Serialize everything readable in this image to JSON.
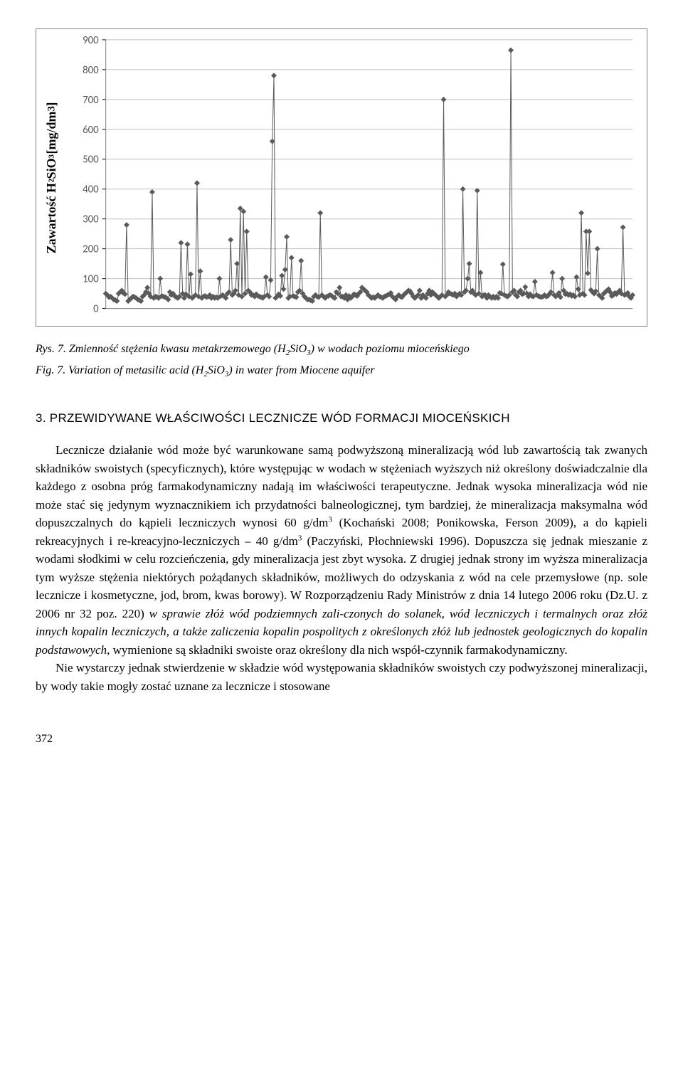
{
  "chart": {
    "type": "line-marker",
    "y_axis_label_html": "Zawartość H<sub>2</sub>SiO<sub>3</sub> [mg/dm<sup>3</sup>]",
    "ylim": [
      0,
      900
    ],
    "ytick_step": 100,
    "yticks": [
      0,
      100,
      200,
      300,
      400,
      500,
      600,
      700,
      800,
      900
    ],
    "x_count": 330,
    "background_color": "#ffffff",
    "border_color": "#808080",
    "grid_color": "#c0c0c0",
    "line_color": "#5a5a5a",
    "marker_color": "#5a5a5a",
    "marker_type": "diamond",
    "marker_size": 4,
    "line_width": 1,
    "tick_fontsize": 15,
    "axis_label_fontsize": 18,
    "values": [
      50,
      45,
      38,
      40,
      35,
      30,
      28,
      25,
      50,
      55,
      60,
      52,
      48,
      280,
      25,
      30,
      35,
      40,
      38,
      35,
      30,
      28,
      25,
      40,
      45,
      55,
      70,
      50,
      40,
      390,
      35,
      40,
      38,
      35,
      100,
      42,
      40,
      38,
      35,
      30,
      55,
      45,
      50,
      42,
      38,
      35,
      40,
      220,
      50,
      35,
      48,
      215,
      40,
      115,
      35,
      40,
      45,
      420,
      40,
      125,
      35,
      40,
      42,
      38,
      40,
      45,
      35,
      40,
      35,
      38,
      35,
      100,
      42,
      45,
      40,
      35,
      50,
      55,
      230,
      45,
      50,
      60,
      150,
      45,
      335,
      40,
      325,
      50,
      258,
      60,
      55,
      45,
      45,
      40,
      48,
      42,
      40,
      38,
      35,
      40,
      105,
      45,
      40,
      95,
      560,
      780,
      35,
      40,
      48,
      42,
      110,
      65,
      130,
      240,
      35,
      40,
      170,
      42,
      40,
      38,
      55,
      60,
      160,
      50,
      40,
      35,
      30,
      30,
      28,
      25,
      40,
      45,
      40,
      38,
      320,
      45,
      40,
      35,
      40,
      42,
      45,
      43,
      38,
      35,
      55,
      50,
      70,
      40,
      40,
      35,
      45,
      30,
      42,
      35,
      40,
      48,
      45,
      42,
      50,
      55,
      70,
      65,
      60,
      55,
      45,
      40,
      35,
      38,
      35,
      40,
      45,
      40,
      38,
      35,
      40,
      42,
      45,
      48,
      52,
      40,
      35,
      30,
      40,
      45,
      40,
      38,
      45,
      50,
      55,
      60,
      58,
      50,
      40,
      35,
      40,
      45,
      60,
      35,
      45,
      40,
      35,
      50,
      60,
      45,
      55,
      50,
      45,
      40,
      35,
      40,
      45,
      700,
      40,
      45,
      55,
      50,
      48,
      45,
      50,
      40,
      45,
      50,
      45,
      400,
      55,
      60,
      100,
      150,
      55,
      60,
      50,
      45,
      395,
      50,
      120,
      40,
      45,
      45,
      35,
      45,
      40,
      35,
      40,
      35,
      40,
      35,
      52,
      50,
      148,
      45,
      42,
      40,
      45,
      865,
      55,
      60,
      45,
      40,
      55,
      60,
      48,
      50,
      72,
      50,
      40,
      48,
      42,
      40,
      90,
      45,
      42,
      40,
      38,
      40,
      45,
      40,
      42,
      48,
      55,
      120,
      45,
      40,
      45,
      52,
      38,
      100,
      60,
      48,
      50,
      45,
      48,
      42,
      45,
      40,
      105,
      65,
      45,
      320,
      50,
      45,
      258,
      118,
      258,
      62,
      55,
      50,
      58,
      200,
      45,
      40,
      35,
      50,
      55,
      60,
      65,
      55,
      42,
      45,
      52,
      48,
      55,
      60,
      50,
      272,
      45,
      48,
      52,
      40,
      35,
      45
    ]
  },
  "fig_caption_pl": "Rys. 7. Zmienność stężenia kwasu metakrzemowego (H<sub>2</sub>SiO<sub>3</sub>) w wodach poziomu mioceńskiego",
  "fig_caption_en": "Fig. 7. Variation of metasilic acid (H<sub>2</sub>SiO<sub>3</sub>) in water from Miocene aquifer",
  "section_heading": "3. PRZEWIDYWANE WŁAŚCIWOŚCI LECZNICZE WÓD FORMACJI MIOCEŃSKICH",
  "para1_html": "Lecznicze działanie wód może być warunkowane samą podwyższoną mineralizacją wód lub zawartością tak zwanych składników swoistych (specyficznych), które występując w wodach w stężeniach wyższych niż określony doświadczalnie dla każdego z osobna próg farmakodynamiczny nadają im właściwości terapeutyczne. Jednak wysoka mineralizacja wód nie może stać się jedynym wyznacznikiem ich przydatności balneologicznej, tym bardziej, że mineralizacja maksymalna wód dopuszczalnych do kąpieli leczniczych wynosi 60 g/dm<sup>3</sup> (Kochański 2008; Ponikowska, Ferson 2009), a do kąpieli rekreacyjnych i re-kreacyjno-leczniczych – 40 g/dm<sup>3</sup> (Paczyński, Płochniewski 1996). Dopuszcza się jednak mieszanie z wodami słodkimi w celu rozcieńczenia, gdy mineralizacja jest zbyt wysoka. Z drugiej jednak strony im wyższa mineralizacja tym wyższe stężenia niektórych pożądanych składników, możliwych do odzyskania z wód na cele przemysłowe (np. sole lecznicze i kosmetyczne, jod, brom, kwas borowy). W Rozporządzeniu Rady Ministrów z dnia 14 lutego 2006 roku (Dz.U. z 2006 nr 32 poz. 220) <i>w sprawie złóż wód podziemnych zali-czonych do solanek, wód leczniczych i termalnych oraz złóż innych kopalin leczniczych, a także zaliczenia kopalin pospolitych z określonych złóż lub jednostek geologicznych do kopalin podstawowych</i>, wymienione są składniki swoiste oraz określony dla nich współ-czynnik farmakodynamiczny.",
  "para2_html": "Nie wystarczy jednak stwierdzenie w składzie wód występowania składników swoistych czy podwyższonej mineralizacji, by wody takie mogły zostać uznane za lecznicze i stosowane",
  "page_number": "372"
}
